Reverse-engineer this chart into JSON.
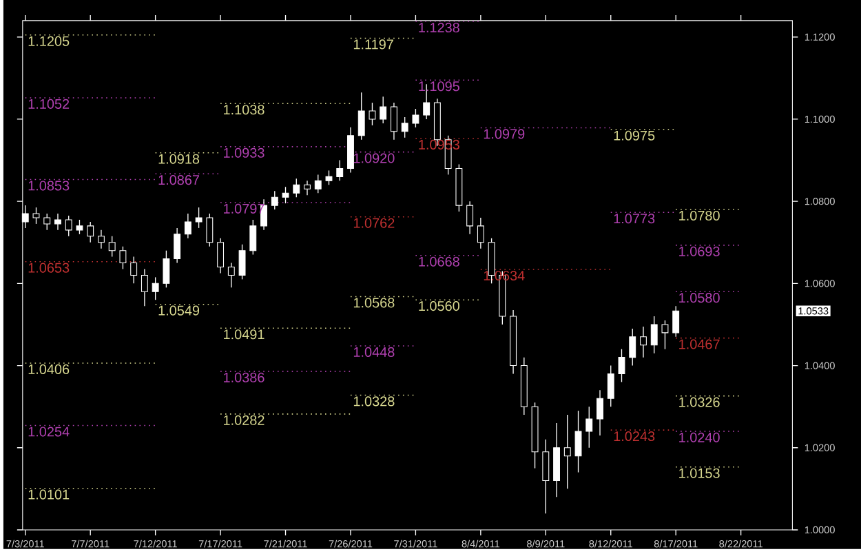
{
  "chart_data": {
    "type": "candlestick",
    "categories": [
      "7/3/2011",
      null,
      null,
      null,
      null,
      null,
      "7/7/2011",
      null,
      null,
      null,
      null,
      null,
      "7/12/2011",
      null,
      null,
      null,
      null,
      null,
      "7/17/2011",
      null,
      null,
      null,
      null,
      null,
      "7/21/2011",
      null,
      null,
      null,
      null,
      null,
      "7/26/2011",
      null,
      null,
      null,
      null,
      null,
      "7/31/2011",
      null,
      null,
      null,
      null,
      null,
      "8/4/2011",
      null,
      null,
      null,
      null,
      null,
      "8/9/2011",
      null,
      null,
      null,
      null,
      null,
      "8/12/2011",
      null,
      null,
      null,
      null,
      null,
      "8/17/2011",
      null,
      null,
      null,
      null,
      null,
      "8/22/2011",
      null,
      null,
      null,
      null
    ],
    "ohlc": [
      [
        1.075,
        1.079,
        1.0735,
        1.077
      ],
      [
        1.077,
        1.0785,
        1.0745,
        1.076
      ],
      [
        1.076,
        1.077,
        1.073,
        1.0745
      ],
      [
        1.0745,
        1.077,
        1.073,
        1.0755
      ],
      [
        1.0755,
        1.0765,
        1.0715,
        1.073
      ],
      [
        1.073,
        1.0755,
        1.072,
        1.074
      ],
      [
        1.074,
        1.075,
        1.07,
        1.0715
      ],
      [
        1.0715,
        1.073,
        1.0685,
        1.07
      ],
      [
        1.07,
        1.0715,
        1.0665,
        1.068
      ],
      [
        1.068,
        1.069,
        1.0635,
        1.065
      ],
      [
        1.065,
        1.0665,
        1.06,
        1.062
      ],
      [
        1.062,
        1.0635,
        1.0545,
        1.058
      ],
      [
        1.058,
        1.0615,
        1.056,
        1.06
      ],
      [
        1.06,
        1.068,
        1.059,
        1.066
      ],
      [
        1.066,
        1.0735,
        1.065,
        1.072
      ],
      [
        1.072,
        1.077,
        1.071,
        1.075
      ],
      [
        1.075,
        1.0785,
        1.0735,
        1.076
      ],
      [
        1.076,
        1.077,
        1.069,
        1.07
      ],
      [
        1.07,
        1.071,
        1.0625,
        1.064
      ],
      [
        1.064,
        1.065,
        1.059,
        1.062
      ],
      [
        1.062,
        1.0695,
        1.061,
        1.068
      ],
      [
        1.068,
        1.0755,
        1.067,
        1.074
      ],
      [
        1.074,
        1.0805,
        1.073,
        1.079
      ],
      [
        1.079,
        1.0825,
        1.078,
        1.081
      ],
      [
        1.081,
        1.0835,
        1.0795,
        1.082
      ],
      [
        1.082,
        1.0855,
        1.081,
        1.084
      ],
      [
        1.084,
        1.085,
        1.0815,
        1.083
      ],
      [
        1.083,
        1.0865,
        1.082,
        1.085
      ],
      [
        1.085,
        1.0875,
        1.084,
        1.086
      ],
      [
        1.086,
        1.09,
        1.085,
        1.088
      ],
      [
        1.088,
        1.098,
        1.087,
        1.096
      ],
      [
        1.096,
        1.1065,
        1.095,
        1.102
      ],
      [
        1.102,
        1.104,
        1.0985,
        1.1
      ],
      [
        1.1,
        1.1055,
        1.099,
        1.103
      ],
      [
        1.103,
        1.104,
        1.095,
        1.097
      ],
      [
        1.097,
        1.1005,
        1.0955,
        1.099
      ],
      [
        1.099,
        1.1025,
        1.098,
        1.101
      ],
      [
        1.101,
        1.1085,
        1.1,
        1.104
      ],
      [
        1.104,
        1.105,
        1.0935,
        1.095
      ],
      [
        1.095,
        1.096,
        1.0865,
        1.088
      ],
      [
        1.088,
        1.089,
        1.0775,
        1.079
      ],
      [
        1.079,
        1.08,
        1.072,
        1.074
      ],
      [
        1.074,
        1.076,
        1.0685,
        1.07
      ],
      [
        1.07,
        1.071,
        1.06,
        1.062
      ],
      [
        1.062,
        1.063,
        1.05,
        1.052
      ],
      [
        1.052,
        1.0535,
        1.038,
        1.04
      ],
      [
        1.04,
        1.042,
        1.028,
        1.03
      ],
      [
        1.03,
        1.031,
        1.015,
        1.019
      ],
      [
        1.019,
        1.022,
        1.004,
        1.012
      ],
      [
        1.012,
        1.026,
        1.008,
        1.02
      ],
      [
        1.02,
        1.028,
        1.01,
        1.018
      ],
      [
        1.018,
        1.029,
        1.014,
        1.024
      ],
      [
        1.024,
        1.03,
        1.02,
        1.027
      ],
      [
        1.027,
        1.034,
        1.023,
        1.032
      ],
      [
        1.032,
        1.04,
        1.03,
        1.038
      ],
      [
        1.038,
        1.044,
        1.036,
        1.042
      ],
      [
        1.042,
        1.049,
        1.04,
        1.047
      ],
      [
        1.047,
        1.0495,
        1.042,
        1.045
      ],
      [
        1.045,
        1.052,
        1.043,
        1.05
      ],
      [
        1.05,
        1.051,
        1.044,
        1.048
      ],
      [
        1.048,
        1.0545,
        1.047,
        1.0533
      ],
      null,
      null,
      null,
      null,
      null,
      null,
      null,
      null,
      null,
      null
    ],
    "ylim": [
      1.0,
      1.124
    ],
    "yticks": [
      {
        "value": 1.0,
        "label": "1.0000"
      },
      {
        "value": 1.02,
        "label": "1.0200"
      },
      {
        "value": 1.04,
        "label": "1.0400"
      },
      {
        "value": 1.06,
        "label": "1.0600"
      },
      {
        "value": 1.08,
        "label": "1.0800"
      },
      {
        "value": 1.1,
        "label": "1.1000"
      },
      {
        "value": 1.12,
        "label": "1.1200"
      }
    ],
    "series": [
      {
        "type": "line",
        "line_style": "dotted",
        "color": "#d8d890",
        "x": [
          "7/3/2011",
          "7/12/2011"
        ],
        "values": [
          1.1205,
          1.1205
        ]
      },
      {
        "type": "line",
        "line_style": "dotted",
        "color": "#b040b0",
        "x": [
          "7/3/2011",
          "7/12/2011"
        ],
        "values": [
          1.1052,
          1.1052
        ]
      },
      {
        "type": "line",
        "line_style": "dotted",
        "color": "#b040b0",
        "x": [
          "7/3/2011",
          "7/12/2011"
        ],
        "values": [
          1.0853,
          1.0853
        ]
      },
      {
        "type": "line",
        "line_style": "dotted",
        "color": "#c03030",
        "x": [
          "7/3/2011",
          "7/12/2011"
        ],
        "values": [
          1.0653,
          1.0653
        ]
      },
      {
        "type": "line",
        "line_style": "dotted",
        "color": "#d8d890",
        "x": [
          "7/3/2011",
          "7/12/2011"
        ],
        "values": [
          1.0406,
          1.0406
        ]
      },
      {
        "type": "line",
        "line_style": "dotted",
        "color": "#b040b0",
        "x": [
          "7/3/2011",
          "7/12/2011"
        ],
        "values": [
          1.0254,
          1.0254
        ]
      },
      {
        "type": "line",
        "line_style": "dotted",
        "color": "#d8d890",
        "x": [
          "7/3/2011",
          "7/12/2011"
        ],
        "values": [
          1.0101,
          1.0101
        ]
      },
      {
        "type": "line",
        "line_style": "dotted",
        "color": "#d8d890",
        "x": [
          "7/12/2011",
          "7/17/2011"
        ],
        "values": [
          1.0918,
          1.0918
        ]
      },
      {
        "type": "line",
        "line_style": "dotted",
        "color": "#b040b0",
        "x": [
          "7/12/2011",
          "7/17/2011"
        ],
        "values": [
          1.0867,
          1.0867
        ]
      },
      {
        "type": "line",
        "line_style": "dotted",
        "color": "#d8d890",
        "x": [
          "7/12/2011",
          "7/17/2011"
        ],
        "values": [
          1.0549,
          1.0549
        ]
      },
      {
        "type": "line",
        "line_style": "dotted",
        "color": "#d8d890",
        "x": [
          "7/17/2011",
          "7/26/2011"
        ],
        "values": [
          1.1038,
          1.1038
        ]
      },
      {
        "type": "line",
        "line_style": "dotted",
        "color": "#b040b0",
        "x": [
          "7/17/2011",
          "7/26/2011"
        ],
        "values": [
          1.0933,
          1.0933
        ]
      },
      {
        "type": "line",
        "line_style": "dotted",
        "color": "#b040b0",
        "x": [
          "7/17/2011",
          "7/26/2011"
        ],
        "values": [
          1.0797,
          1.0797
        ]
      },
      {
        "type": "line",
        "line_style": "dotted",
        "color": "#d8d890",
        "x": [
          "7/17/2011",
          "7/26/2011"
        ],
        "values": [
          1.0491,
          1.0491
        ]
      },
      {
        "type": "line",
        "line_style": "dotted",
        "color": "#b040b0",
        "x": [
          "7/17/2011",
          "7/26/2011"
        ],
        "values": [
          1.0386,
          1.0386
        ]
      },
      {
        "type": "line",
        "line_style": "dotted",
        "color": "#d8d890",
        "x": [
          "7/17/2011",
          "7/26/2011"
        ],
        "values": [
          1.0282,
          1.0282
        ]
      },
      {
        "type": "line",
        "line_style": "dotted",
        "color": "#d8d890",
        "x": [
          "7/26/2011",
          "7/31/2011"
        ],
        "values": [
          1.1197,
          1.1197
        ]
      },
      {
        "type": "line",
        "line_style": "dotted",
        "color": "#b040b0",
        "x": [
          "7/26/2011",
          "7/31/2011"
        ],
        "values": [
          1.092,
          1.092
        ]
      },
      {
        "type": "line",
        "line_style": "dotted",
        "color": "#c03030",
        "x": [
          "7/26/2011",
          "7/31/2011"
        ],
        "values": [
          1.0762,
          1.0762
        ]
      },
      {
        "type": "line",
        "line_style": "dotted",
        "color": "#d8d890",
        "x": [
          "7/26/2011",
          "7/31/2011"
        ],
        "values": [
          1.0568,
          1.0568
        ]
      },
      {
        "type": "line",
        "line_style": "dotted",
        "color": "#b040b0",
        "x": [
          "7/26/2011",
          "7/31/2011"
        ],
        "values": [
          1.0448,
          1.0448
        ]
      },
      {
        "type": "line",
        "line_style": "dotted",
        "color": "#d8d890",
        "x": [
          "7/26/2011",
          "7/31/2011"
        ],
        "values": [
          1.0328,
          1.0328
        ]
      },
      {
        "type": "line",
        "line_style": "dotted",
        "color": "#b040b0",
        "x": [
          "7/31/2011",
          "8/4/2011"
        ],
        "values": [
          1.1238,
          1.1238
        ]
      },
      {
        "type": "line",
        "line_style": "dotted",
        "color": "#b040b0",
        "x": [
          "7/31/2011",
          "8/4/2011"
        ],
        "values": [
          1.1095,
          1.1095
        ]
      },
      {
        "type": "line",
        "line_style": "dotted",
        "color": "#c03030",
        "x": [
          "7/31/2011",
          "8/4/2011"
        ],
        "values": [
          1.0953,
          1.0953
        ]
      },
      {
        "type": "line",
        "line_style": "dotted",
        "color": "#b040b0",
        "x": [
          "7/31/2011",
          "8/4/2011"
        ],
        "values": [
          1.0668,
          1.0668
        ]
      },
      {
        "type": "line",
        "line_style": "dotted",
        "color": "#d8d890",
        "x": [
          "7/31/2011",
          "8/4/2011"
        ],
        "values": [
          1.056,
          1.056
        ]
      },
      {
        "type": "line",
        "line_style": "dotted",
        "color": "#b040b0",
        "x": [
          "8/4/2011",
          "8/12/2011"
        ],
        "values": [
          1.0979,
          1.0979
        ]
      },
      {
        "type": "line",
        "line_style": "dotted",
        "color": "#c03030",
        "x": [
          "8/4/2011",
          "8/12/2011"
        ],
        "values": [
          1.0634,
          1.0634
        ]
      },
      {
        "type": "line",
        "line_style": "dotted",
        "color": "#d8d890",
        "x": [
          "8/12/2011",
          "8/17/2011"
        ],
        "values": [
          1.0975,
          1.0975
        ]
      },
      {
        "type": "line",
        "line_style": "dotted",
        "color": "#b040b0",
        "x": [
          "8/12/2011",
          "8/17/2011"
        ],
        "values": [
          1.0773,
          1.0773
        ]
      },
      {
        "type": "line",
        "line_style": "dotted",
        "color": "#c03030",
        "x": [
          "8/12/2011",
          "8/17/2011"
        ],
        "values": [
          1.0243,
          1.0243
        ]
      },
      {
        "type": "line",
        "line_style": "dotted",
        "color": "#d8d890",
        "x": [
          "8/17/2011",
          "8/22/2011"
        ],
        "values": [
          1.078,
          1.078
        ]
      },
      {
        "type": "line",
        "line_style": "dotted",
        "color": "#b040b0",
        "x": [
          "8/17/2011",
          "8/22/2011"
        ],
        "values": [
          1.0693,
          1.0693
        ]
      },
      {
        "type": "line",
        "line_style": "dotted",
        "color": "#b040b0",
        "x": [
          "8/17/2011",
          "8/22/2011"
        ],
        "values": [
          1.058,
          1.058
        ]
      },
      {
        "type": "line",
        "line_style": "dotted",
        "color": "#c03030",
        "x": [
          "8/17/2011",
          "8/22/2011"
        ],
        "values": [
          1.0467,
          1.0467
        ]
      },
      {
        "type": "line",
        "line_style": "dotted",
        "color": "#d8d890",
        "x": [
          "8/17/2011",
          "8/22/2011"
        ],
        "values": [
          1.0326,
          1.0326
        ]
      },
      {
        "type": "line",
        "line_style": "dotted",
        "color": "#b040b0",
        "x": [
          "8/17/2011",
          "8/22/2011"
        ],
        "values": [
          1.024,
          1.024
        ]
      },
      {
        "type": "line",
        "line_style": "dotted",
        "color": "#d8d890",
        "x": [
          "8/17/2011",
          "8/22/2011"
        ],
        "values": [
          1.0153,
          1.0153
        ]
      }
    ],
    "annotations": [
      {
        "text": "1.1205",
        "x": "7/3/2011",
        "y": 1.1205
      },
      {
        "text": "1.1052",
        "x": "7/3/2011",
        "y": 1.1052
      },
      {
        "text": "1.0853",
        "x": "7/3/2011",
        "y": 1.0853
      },
      {
        "text": "1.0653",
        "x": "7/3/2011",
        "y": 1.0653
      },
      {
        "text": "1.0406",
        "x": "7/3/2011",
        "y": 1.0406
      },
      {
        "text": "1.0254",
        "x": "7/3/2011",
        "y": 1.0254
      },
      {
        "text": "1.0101",
        "x": "7/3/2011",
        "y": 1.0101
      },
      {
        "text": "1.0918",
        "x": "7/12/2011",
        "y": 1.0918
      },
      {
        "text": "1.0867",
        "x": "7/12/2011",
        "y": 1.0867
      },
      {
        "text": "1.0549",
        "x": "7/12/2011",
        "y": 1.0549
      },
      {
        "text": "1.1038",
        "x": "7/17/2011",
        "y": 1.1038
      },
      {
        "text": "1.0933",
        "x": "7/17/2011",
        "y": 1.0933
      },
      {
        "text": "1.0797",
        "x": "7/17/2011",
        "y": 1.0797
      },
      {
        "text": "1.0491",
        "x": "7/17/2011",
        "y": 1.0491
      },
      {
        "text": "1.0386",
        "x": "7/17/2011",
        "y": 1.0386
      },
      {
        "text": "1.0282",
        "x": "7/17/2011",
        "y": 1.0282
      },
      {
        "text": "1.1197",
        "x": "7/26/2011",
        "y": 1.1197
      },
      {
        "text": "1.0920",
        "x": "7/26/2011",
        "y": 1.092
      },
      {
        "text": "1.0762",
        "x": "7/26/2011",
        "y": 1.0762
      },
      {
        "text": "1.0568",
        "x": "7/26/2011",
        "y": 1.0568
      },
      {
        "text": "1.0448",
        "x": "7/26/2011",
        "y": 1.0448
      },
      {
        "text": "1.0328",
        "x": "7/26/2011",
        "y": 1.0328
      },
      {
        "text": "1.1238",
        "x": "7/31/2011",
        "y": 1.1238
      },
      {
        "text": "1.1095",
        "x": "7/31/2011",
        "y": 1.1095
      },
      {
        "text": "1.0953",
        "x": "7/31/2011",
        "y": 1.0953
      },
      {
        "text": "1.0668",
        "x": "7/31/2011",
        "y": 1.0668
      },
      {
        "text": "1.0560",
        "x": "7/31/2011",
        "y": 1.056
      },
      {
        "text": "1.0979",
        "x": "8/4/2011",
        "y": 1.0979
      },
      {
        "text": "1.0634",
        "x": "8/4/2011",
        "y": 1.0634
      },
      {
        "text": "1.0975",
        "x": "8/12/2011",
        "y": 1.0975
      },
      {
        "text": "1.0773",
        "x": "8/12/2011",
        "y": 1.0773
      },
      {
        "text": "1.0243",
        "x": "8/12/2011",
        "y": 1.0243
      },
      {
        "text": "1.0780",
        "x": "8/17/2011",
        "y": 1.078
      },
      {
        "text": "1.0693",
        "x": "8/17/2011",
        "y": 1.0693
      },
      {
        "text": "1.0580",
        "x": "8/17/2011",
        "y": 1.058
      },
      {
        "text": "1.0467",
        "x": "8/17/2011",
        "y": 1.0467
      },
      {
        "text": "1.0326",
        "x": "8/17/2011",
        "y": 1.0326
      },
      {
        "text": "1.0240",
        "x": "8/17/2011",
        "y": 1.024
      },
      {
        "text": "1.0153",
        "x": "8/17/2011",
        "y": 1.0153
      },
      "1.0533"
    ]
  }
}
